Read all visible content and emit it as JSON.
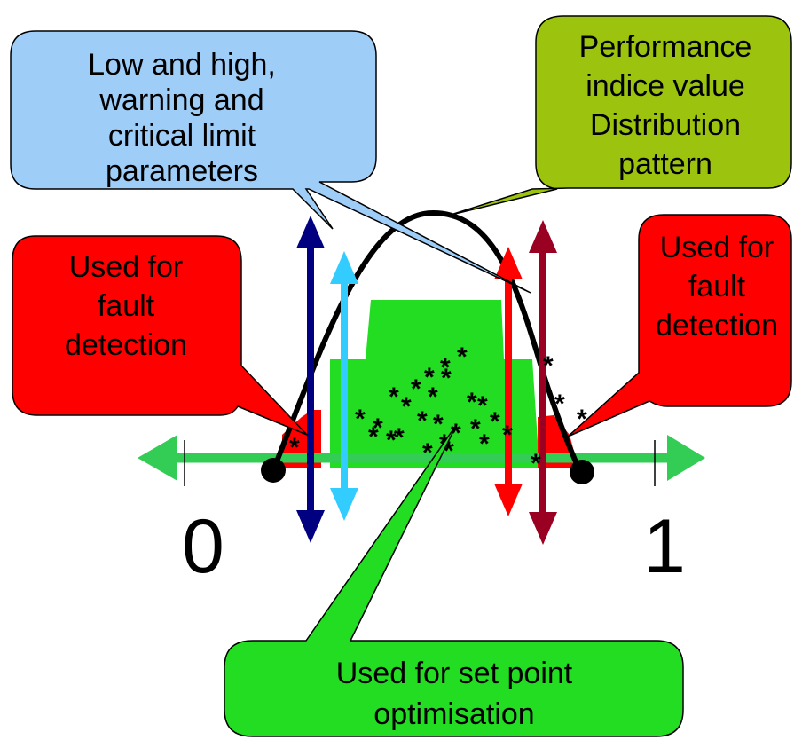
{
  "callouts": {
    "limits": {
      "lines": [
        "Low and high,",
        "warning and",
        "critical limit",
        "parameters"
      ],
      "color": "#9ecdf8"
    },
    "distribution": {
      "lines": [
        "Performance",
        "indice value",
        "Distribution",
        "pattern"
      ],
      "color": "#9cc40e"
    },
    "fault_left": {
      "lines": [
        "Used for",
        "fault",
        "detection"
      ],
      "color": "#ff0000"
    },
    "fault_right": {
      "lines": [
        "Used for",
        "fault",
        "detection"
      ],
      "color": "#ff0000"
    },
    "setpoint": {
      "lines": [
        "Used for set point",
        "optimisation"
      ],
      "color": "#22dd22"
    }
  },
  "axis": {
    "min_label": "0",
    "max_label": "1",
    "color": "#33cc55"
  },
  "limit_arrows": {
    "low_critical": {
      "icon": "double-arrow-icon",
      "color": "#000080"
    },
    "low_warning": {
      "icon": "double-arrow-icon",
      "color": "#33ccff"
    },
    "high_warning": {
      "icon": "double-arrow-icon",
      "color": "#ff0000"
    },
    "high_critical": {
      "icon": "double-arrow-icon",
      "color": "#990022"
    }
  },
  "markers": {
    "symbol": "*",
    "count": 30
  },
  "colors": {
    "green_region": "#22dd22",
    "red_region": "#ff0000",
    "curve": "#000000"
  }
}
